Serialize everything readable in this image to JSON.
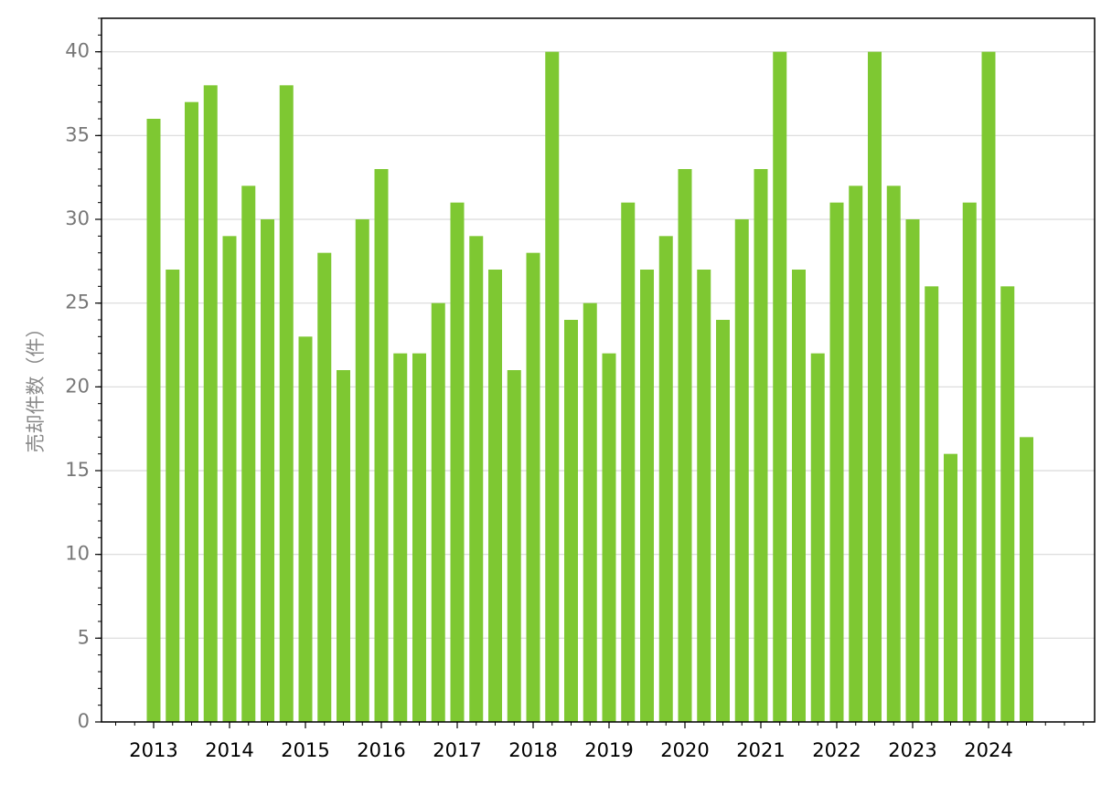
{
  "chart_data": {
    "type": "bar",
    "y_label": "売却件数（件）",
    "categories": [
      "2013",
      null,
      null,
      null,
      "2014",
      null,
      null,
      null,
      "2015",
      null,
      null,
      null,
      "2016",
      null,
      null,
      null,
      "2017",
      null,
      null,
      null,
      "2018",
      null,
      null,
      null,
      "2019",
      null,
      null,
      null,
      "2020",
      null,
      null,
      null,
      "2021",
      null,
      null,
      null,
      "2022",
      null,
      null,
      null,
      "2023",
      null,
      null,
      null,
      "2024",
      null,
      null
    ],
    "values": [
      36,
      27,
      37,
      38,
      29,
      32,
      30,
      38,
      23,
      28,
      21,
      30,
      33,
      22,
      22,
      25,
      31,
      29,
      27,
      21,
      28,
      40,
      24,
      25,
      22,
      31,
      27,
      29,
      33,
      27,
      24,
      30,
      33,
      40,
      27,
      22,
      31,
      32,
      40,
      32,
      30,
      26,
      16,
      31,
      40,
      26,
      17
    ],
    "color": "#7ec832",
    "ylim": [
      0,
      42
    ],
    "yticks": [
      0,
      5,
      10,
      15,
      20,
      25,
      30,
      35,
      40
    ],
    "grid": true
  }
}
